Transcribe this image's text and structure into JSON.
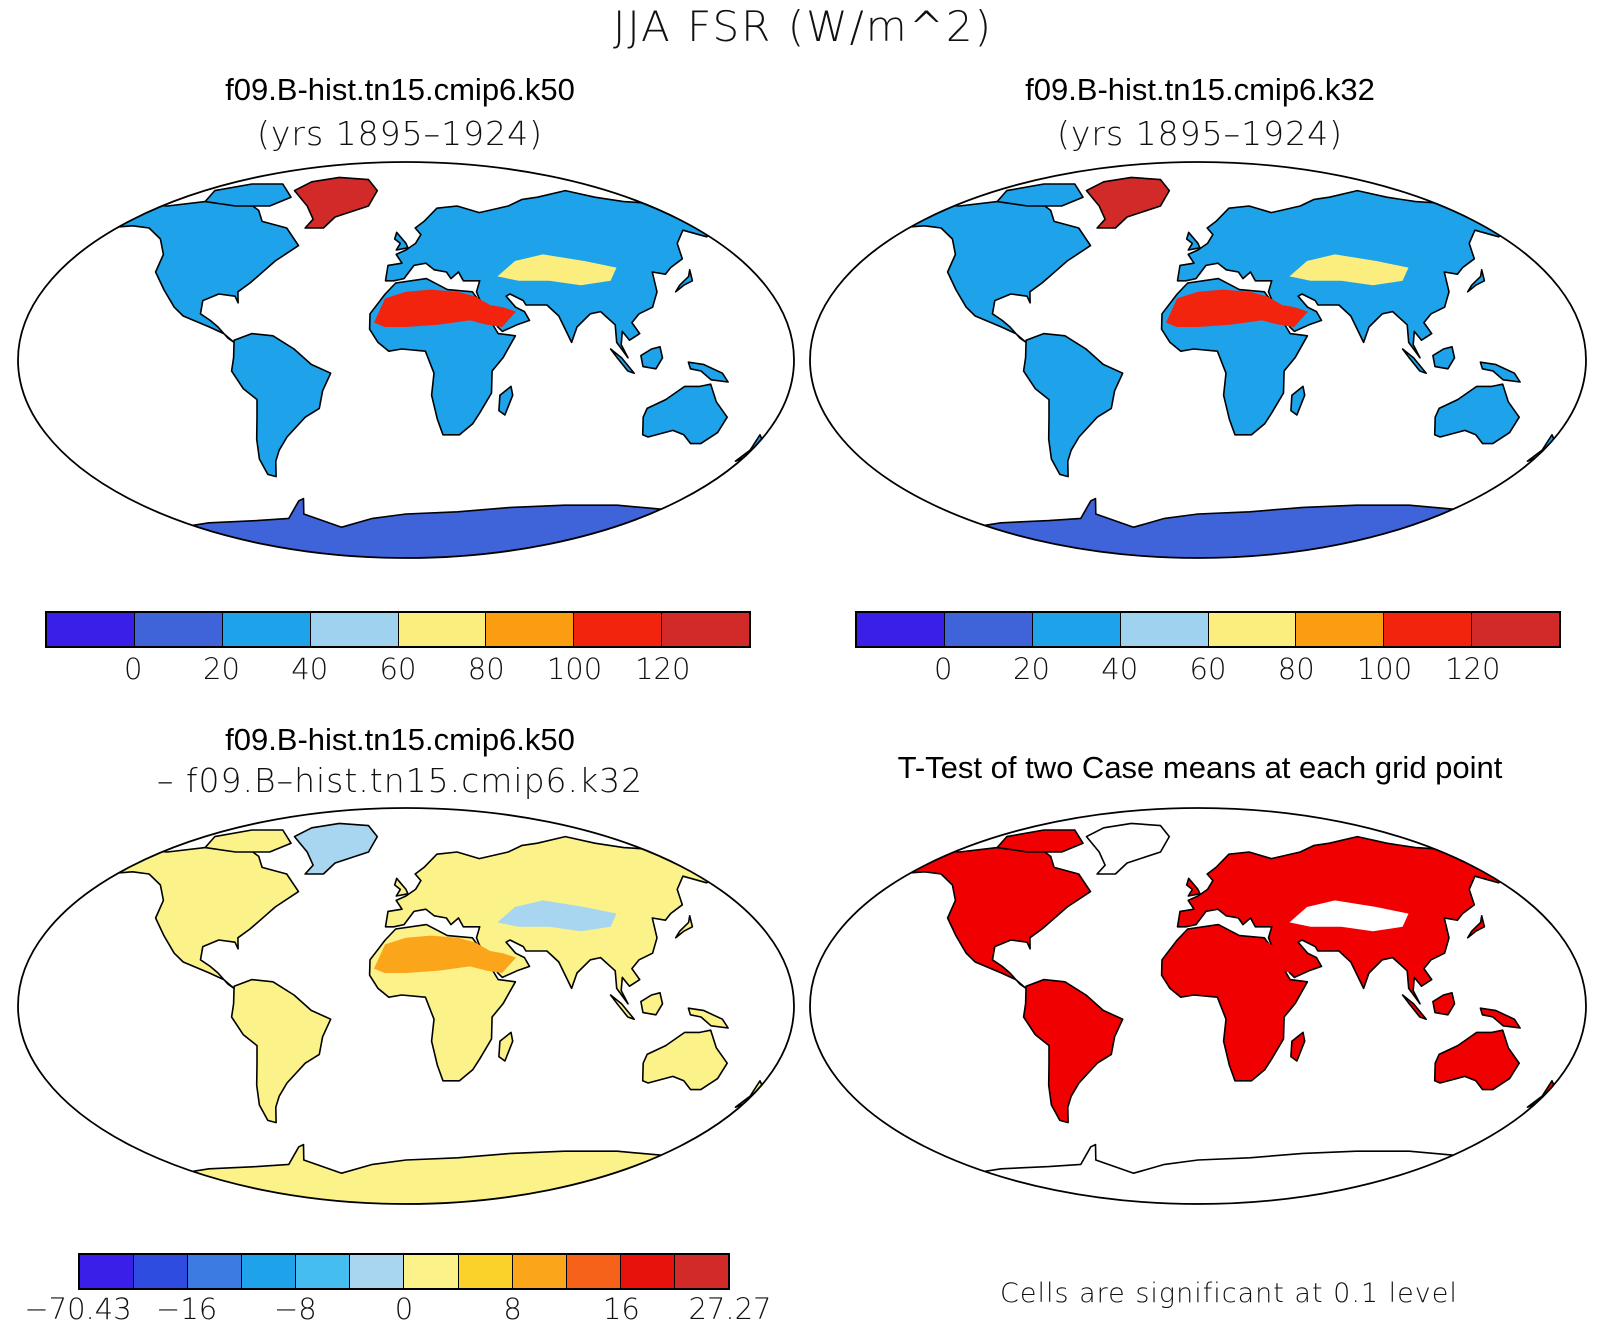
{
  "title": "JJA FSR (W/m^2)",
  "panels": {
    "top_left": {
      "title": "f09.B-hist.tn15.cmip6.k50",
      "subtitle": "(yrs 1895–1924)"
    },
    "top_right": {
      "title": "f09.B-hist.tn15.cmip6.k32",
      "subtitle": "(yrs 1895–1924)"
    },
    "bottom_left": {
      "title": "f09.B-hist.tn15.cmip6.k50",
      "subtitle": "– f09.B–hist.tn15.cmip6.k32"
    },
    "bottom_right": {
      "title": "T-Test of two Case means at each grid point",
      "note": "Cells are significant at 0.1 level"
    }
  },
  "colorbars": {
    "absolute": {
      "colors": [
        "#3a1fe8",
        "#3f63d8",
        "#1ea3ea",
        "#9fd2ee",
        "#fbee7e",
        "#fa9d10",
        "#f3240e",
        "#d12a28"
      ],
      "ticks": [
        "0",
        "20",
        "40",
        "60",
        "80",
        "100",
        "120"
      ]
    },
    "difference": {
      "colors": [
        "#3a1fe8",
        "#2e4de0",
        "#3b7be2",
        "#1ea3ea",
        "#45bdf0",
        "#a8d5ef",
        "#fbf28a",
        "#fbd22a",
        "#fba51a",
        "#f7621a",
        "#e8120c",
        "#d12a28"
      ],
      "ticks": [
        "−70.43",
        "−16",
        "−8",
        "0",
        "8",
        "16",
        "27.27"
      ]
    }
  },
  "map_fills": {
    "top_left": {
      "ocean": "#ffffff",
      "land": "#1ea3ea",
      "ice": "#3f63d8",
      "desert": "#f3240e",
      "greenland": "#d12a28",
      "arid": "#fbee7e"
    },
    "top_right": {
      "ocean": "#ffffff",
      "land": "#1ea3ea",
      "ice": "#3f63d8",
      "desert": "#f3240e",
      "greenland": "#d12a28",
      "arid": "#fbee7e"
    },
    "bottom_left": {
      "ocean": "#ffffff",
      "land": "#fbf28a",
      "ice": "#fbf28a",
      "desert": "#fba51a",
      "greenland": "#a8d5ef",
      "arid": "#a8d5ef"
    },
    "bottom_right": {
      "ocean": "#ffffff",
      "land": "#f00000",
      "ice": "#ffffff",
      "desert": "#f00000",
      "greenland": "#ffffff",
      "arid": "#ffffff"
    }
  }
}
